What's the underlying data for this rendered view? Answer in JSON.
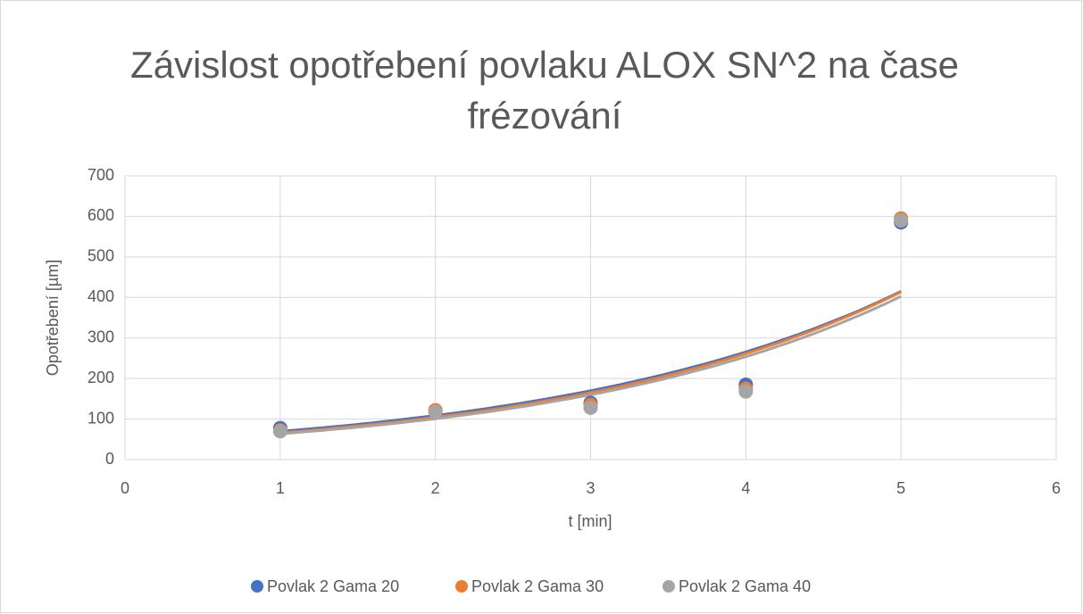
{
  "chart_data": {
    "type": "scatter",
    "title": "Závislost opotřebení povlaku ALOX SN^2 na čase frézování",
    "x_label": "t [min]",
    "y_label": "Opotřebení [µm]",
    "x": [
      1,
      2,
      3,
      4,
      5
    ],
    "series": [
      {
        "name": "Povlak 2 Gama 20",
        "color": "#4472c4",
        "values": [
          78,
          120,
          140,
          185,
          585
        ]
      },
      {
        "name": "Povlak 2 Gama 30",
        "color": "#ed7d31",
        "values": [
          72,
          122,
          135,
          175,
          595
        ]
      },
      {
        "name": "Povlak 2 Gama 40",
        "color": "#a5a5a5",
        "values": [
          70,
          118,
          128,
          168,
          590
        ]
      }
    ],
    "trendline": "exponential",
    "xlim": [
      0,
      6
    ],
    "xticks": [
      0,
      1,
      2,
      3,
      4,
      5,
      6
    ],
    "ylim": [
      0,
      700
    ],
    "yticks": [
      0,
      100,
      200,
      300,
      400,
      500,
      600,
      700
    ],
    "grid": true,
    "legend": "bottom"
  }
}
